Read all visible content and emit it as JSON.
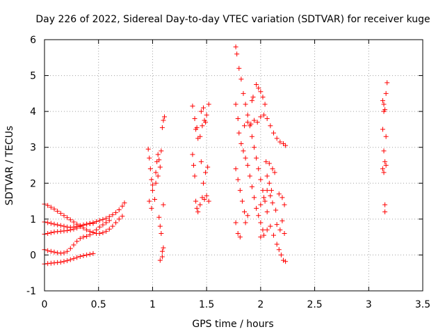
{
  "chart_data": {
    "type": "scatter",
    "title": "Day 226 of 2022, Sidereal Day-to-day VTEC variation (SDTVAR) for receiver kuge",
    "xlabel": "GPS time / hours",
    "ylabel": "SDTVAR / TECUs",
    "xlim": [
      0,
      3.5
    ],
    "ylim": [
      -1,
      6
    ],
    "xticks": [
      "0",
      "0.5",
      "1",
      "1.5",
      "2",
      "2.5",
      "3",
      "3.5"
    ],
    "yticks": [
      "-1",
      "0",
      "1",
      "2",
      "3",
      "4",
      "5",
      "6"
    ],
    "grid": true,
    "marker": "plus",
    "color": "#ff0000",
    "series": [
      {
        "points": [
          [
            0.0,
            1.42
          ],
          [
            0.03,
            1.38
          ],
          [
            0.06,
            1.33
          ],
          [
            0.09,
            1.28
          ],
          [
            0.12,
            1.22
          ],
          [
            0.15,
            1.16
          ],
          [
            0.18,
            1.1
          ],
          [
            0.21,
            1.04
          ],
          [
            0.24,
            0.98
          ],
          [
            0.27,
            0.92
          ],
          [
            0.3,
            0.86
          ],
          [
            0.33,
            0.8
          ],
          [
            0.36,
            0.75
          ],
          [
            0.39,
            0.7
          ],
          [
            0.42,
            0.66
          ],
          [
            0.45,
            0.63
          ],
          [
            0.48,
            0.6
          ],
          [
            0.51,
            0.6
          ],
          [
            0.54,
            0.62
          ],
          [
            0.57,
            0.66
          ],
          [
            0.6,
            0.72
          ],
          [
            0.63,
            0.8
          ],
          [
            0.66,
            0.9
          ],
          [
            0.69,
            1.0
          ],
          [
            0.72,
            1.08
          ],
          [
            0.0,
            0.92
          ],
          [
            0.03,
            0.9
          ],
          [
            0.06,
            0.88
          ],
          [
            0.09,
            0.86
          ],
          [
            0.12,
            0.84
          ],
          [
            0.15,
            0.82
          ],
          [
            0.18,
            0.8
          ],
          [
            0.21,
            0.78
          ],
          [
            0.24,
            0.77
          ],
          [
            0.27,
            0.78
          ],
          [
            0.3,
            0.8
          ],
          [
            0.33,
            0.82
          ],
          [
            0.36,
            0.84
          ],
          [
            0.39,
            0.86
          ],
          [
            0.42,
            0.88
          ],
          [
            0.45,
            0.9
          ],
          [
            0.48,
            0.93
          ],
          [
            0.51,
            0.96
          ],
          [
            0.54,
            0.99
          ],
          [
            0.57,
            1.02
          ],
          [
            0.6,
            1.07
          ],
          [
            0.63,
            1.12
          ],
          [
            0.66,
            1.18
          ],
          [
            0.69,
            1.26
          ],
          [
            0.72,
            1.36
          ],
          [
            0.74,
            1.45
          ],
          [
            0.0,
            0.58
          ],
          [
            0.03,
            0.6
          ],
          [
            0.06,
            0.62
          ],
          [
            0.09,
            0.64
          ],
          [
            0.12,
            0.65
          ],
          [
            0.15,
            0.66
          ],
          [
            0.18,
            0.67
          ],
          [
            0.21,
            0.68
          ],
          [
            0.24,
            0.7
          ],
          [
            0.27,
            0.72
          ],
          [
            0.3,
            0.75
          ],
          [
            0.33,
            0.79
          ],
          [
            0.36,
            0.83
          ],
          [
            0.39,
            0.86
          ],
          [
            0.42,
            0.87
          ],
          [
            0.45,
            0.88
          ],
          [
            0.0,
            0.15
          ],
          [
            0.03,
            0.12
          ],
          [
            0.06,
            0.1
          ],
          [
            0.09,
            0.08
          ],
          [
            0.12,
            0.06
          ],
          [
            0.15,
            0.05
          ],
          [
            0.18,
            0.06
          ],
          [
            0.21,
            0.1
          ],
          [
            0.24,
            0.18
          ],
          [
            0.27,
            0.28
          ],
          [
            0.3,
            0.38
          ],
          [
            0.33,
            0.46
          ],
          [
            0.36,
            0.5
          ],
          [
            0.39,
            0.52
          ],
          [
            0.42,
            0.56
          ],
          [
            0.45,
            0.62
          ],
          [
            0.48,
            0.7
          ],
          [
            0.51,
            0.78
          ],
          [
            0.54,
            0.84
          ],
          [
            0.57,
            0.9
          ],
          [
            0.6,
            0.96
          ],
          [
            0.0,
            -0.25
          ],
          [
            0.03,
            -0.24
          ],
          [
            0.06,
            -0.23
          ],
          [
            0.09,
            -0.22
          ],
          [
            0.12,
            -0.21
          ],
          [
            0.15,
            -0.2
          ],
          [
            0.18,
            -0.18
          ],
          [
            0.21,
            -0.16
          ],
          [
            0.24,
            -0.13
          ],
          [
            0.27,
            -0.1
          ],
          [
            0.3,
            -0.07
          ],
          [
            0.33,
            -0.04
          ],
          [
            0.36,
            -0.02
          ],
          [
            0.39,
            0.0
          ],
          [
            0.42,
            0.02
          ],
          [
            0.45,
            0.04
          ],
          [
            0.96,
            2.95
          ],
          [
            0.97,
            2.7
          ],
          [
            0.98,
            2.4
          ],
          [
            0.99,
            2.1
          ],
          [
            1.0,
            1.95
          ],
          [
            1.0,
            1.8
          ],
          [
            0.97,
            1.5
          ],
          [
            0.99,
            1.3
          ],
          [
            1.02,
            1.55
          ],
          [
            1.03,
            2.3
          ],
          [
            1.04,
            2.6
          ],
          [
            1.05,
            2.8
          ],
          [
            1.06,
            2.65
          ],
          [
            1.07,
            2.45
          ],
          [
            1.08,
            2.9
          ],
          [
            1.09,
            3.55
          ],
          [
            1.1,
            3.75
          ],
          [
            1.11,
            3.85
          ],
          [
            1.03,
            2.0
          ],
          [
            1.05,
            2.2
          ],
          [
            1.06,
            1.05
          ],
          [
            1.07,
            0.8
          ],
          [
            1.08,
            0.6
          ],
          [
            1.1,
            1.4
          ],
          [
            1.09,
            0.1
          ],
          [
            1.1,
            0.2
          ],
          [
            1.07,
            -0.15
          ],
          [
            1.09,
            -0.05
          ],
          [
            1.37,
            4.15
          ],
          [
            1.39,
            3.8
          ],
          [
            1.4,
            3.5
          ],
          [
            1.42,
            3.25
          ],
          [
            1.44,
            3.3
          ],
          [
            1.46,
            3.6
          ],
          [
            1.48,
            3.75
          ],
          [
            1.5,
            3.9
          ],
          [
            1.52,
            4.2
          ],
          [
            1.37,
            2.8
          ],
          [
            1.38,
            2.5
          ],
          [
            1.39,
            2.2
          ],
          [
            1.4,
            1.5
          ],
          [
            1.41,
            1.3
          ],
          [
            1.42,
            1.2
          ],
          [
            1.44,
            1.4
          ],
          [
            1.46,
            1.6
          ],
          [
            1.48,
            1.55
          ],
          [
            1.5,
            1.65
          ],
          [
            1.52,
            1.5
          ],
          [
            1.45,
            2.6
          ],
          [
            1.47,
            2.0
          ],
          [
            1.49,
            2.3
          ],
          [
            1.51,
            2.45
          ],
          [
            1.45,
            4.0
          ],
          [
            1.47,
            4.1
          ],
          [
            1.49,
            3.7
          ],
          [
            1.41,
            3.55
          ],
          [
            1.77,
            5.8
          ],
          [
            1.78,
            5.6
          ],
          [
            1.8,
            5.2
          ],
          [
            1.82,
            4.9
          ],
          [
            1.84,
            4.5
          ],
          [
            1.86,
            4.2
          ],
          [
            1.88,
            3.9
          ],
          [
            1.9,
            3.6
          ],
          [
            1.92,
            3.3
          ],
          [
            1.94,
            3.0
          ],
          [
            1.96,
            2.7
          ],
          [
            1.98,
            2.4
          ],
          [
            2.0,
            2.1
          ],
          [
            2.02,
            1.8
          ],
          [
            2.04,
            1.5
          ],
          [
            2.06,
            1.2
          ],
          [
            1.77,
            4.2
          ],
          [
            1.79,
            3.8
          ],
          [
            1.8,
            3.4
          ],
          [
            1.82,
            3.1
          ],
          [
            1.84,
            2.9
          ],
          [
            1.86,
            2.7
          ],
          [
            1.88,
            2.5
          ],
          [
            1.9,
            2.2
          ],
          [
            1.92,
            1.9
          ],
          [
            1.94,
            1.6
          ],
          [
            1.96,
            1.3
          ],
          [
            1.98,
            1.1
          ],
          [
            2.0,
            0.9
          ],
          [
            2.02,
            0.7
          ],
          [
            1.77,
            2.4
          ],
          [
            1.79,
            2.1
          ],
          [
            1.81,
            1.8
          ],
          [
            1.83,
            1.5
          ],
          [
            1.85,
            1.2
          ],
          [
            1.86,
            0.9
          ],
          [
            1.88,
            1.1
          ],
          [
            1.77,
            0.9
          ],
          [
            1.79,
            0.6
          ],
          [
            1.81,
            0.5
          ],
          [
            1.85,
            3.6
          ],
          [
            1.88,
            3.7
          ],
          [
            1.91,
            3.65
          ],
          [
            1.94,
            3.75
          ],
          [
            1.97,
            3.7
          ],
          [
            2.0,
            3.85
          ],
          [
            2.03,
            3.9
          ],
          [
            2.06,
            3.8
          ],
          [
            2.09,
            3.6
          ],
          [
            2.12,
            3.4
          ],
          [
            2.15,
            3.25
          ],
          [
            2.18,
            3.15
          ],
          [
            2.21,
            3.1
          ],
          [
            2.23,
            3.05
          ],
          [
            1.96,
            4.75
          ],
          [
            1.98,
            4.65
          ],
          [
            2.0,
            4.55
          ],
          [
            2.02,
            4.4
          ],
          [
            2.04,
            4.2
          ],
          [
            1.93,
            4.4
          ],
          [
            1.92,
            4.3
          ],
          [
            2.05,
            2.6
          ],
          [
            2.08,
            2.55
          ],
          [
            2.11,
            2.4
          ],
          [
            2.13,
            2.3
          ],
          [
            2.06,
            2.2
          ],
          [
            2.08,
            2.0
          ],
          [
            2.1,
            1.8
          ],
          [
            2.0,
            1.4
          ],
          [
            2.03,
            1.6
          ],
          [
            2.06,
            1.8
          ],
          [
            2.09,
            1.65
          ],
          [
            2.11,
            1.45
          ],
          [
            2.14,
            1.25
          ],
          [
            2.17,
            1.7
          ],
          [
            2.2,
            1.6
          ],
          [
            2.22,
            1.4
          ],
          [
            2.0,
            0.5
          ],
          [
            2.03,
            0.55
          ],
          [
            2.06,
            0.7
          ],
          [
            2.09,
            0.8
          ],
          [
            2.12,
            0.55
          ],
          [
            2.15,
            0.85
          ],
          [
            2.18,
            0.7
          ],
          [
            2.2,
            0.95
          ],
          [
            2.22,
            0.6
          ],
          [
            2.15,
            0.3
          ],
          [
            2.17,
            0.15
          ],
          [
            2.19,
            0.0
          ],
          [
            2.21,
            -0.15
          ],
          [
            2.23,
            -0.18
          ],
          [
            3.13,
            4.3
          ],
          [
            3.14,
            4.2
          ],
          [
            3.15,
            4.05
          ],
          [
            3.16,
            3.3
          ],
          [
            3.13,
            3.5
          ],
          [
            3.14,
            2.9
          ],
          [
            3.15,
            2.6
          ],
          [
            3.16,
            2.5
          ],
          [
            3.13,
            2.4
          ],
          [
            3.14,
            2.3
          ],
          [
            3.15,
            1.4
          ],
          [
            3.15,
            1.2
          ],
          [
            3.17,
            4.8
          ],
          [
            3.16,
            4.5
          ],
          [
            3.14,
            4.0
          ]
        ]
      }
    ]
  }
}
